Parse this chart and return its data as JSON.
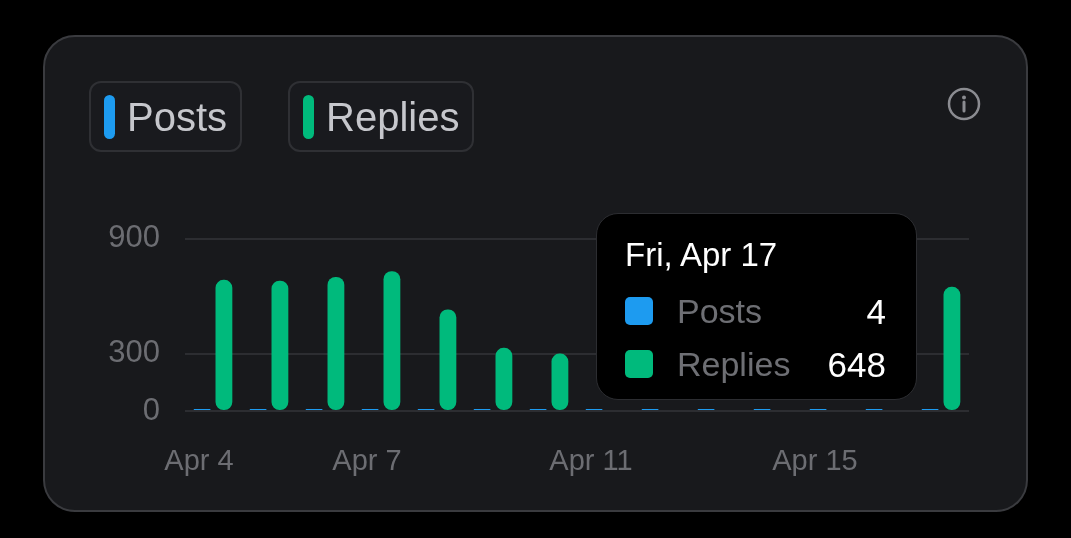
{
  "chart_data": {
    "type": "bar",
    "categories": [
      "Apr 4",
      null,
      null,
      "Apr 7",
      null,
      null,
      null,
      "Apr 11",
      null,
      null,
      null,
      "Apr 15",
      null,
      null
    ],
    "series": [
      {
        "name": "Posts",
        "color": "#1d9bf0",
        "values": [
          5,
          5,
          5,
          6,
          5,
          4,
          5,
          5,
          5,
          5,
          6,
          5,
          5,
          4
        ]
      },
      {
        "name": "Replies",
        "color": "#00ba7c",
        "values": [
          685,
          680,
          700,
          730,
          530,
          330,
          300,
          null,
          null,
          null,
          null,
          null,
          null,
          648
        ]
      }
    ],
    "ylim": [
      0,
      900
    ],
    "yticks": [
      0,
      300,
      900
    ],
    "grid": "y",
    "legend": "top left",
    "annotations": [
      "Fri, Apr 17",
      "Posts",
      "4",
      "Replies",
      "648"
    ]
  }
}
